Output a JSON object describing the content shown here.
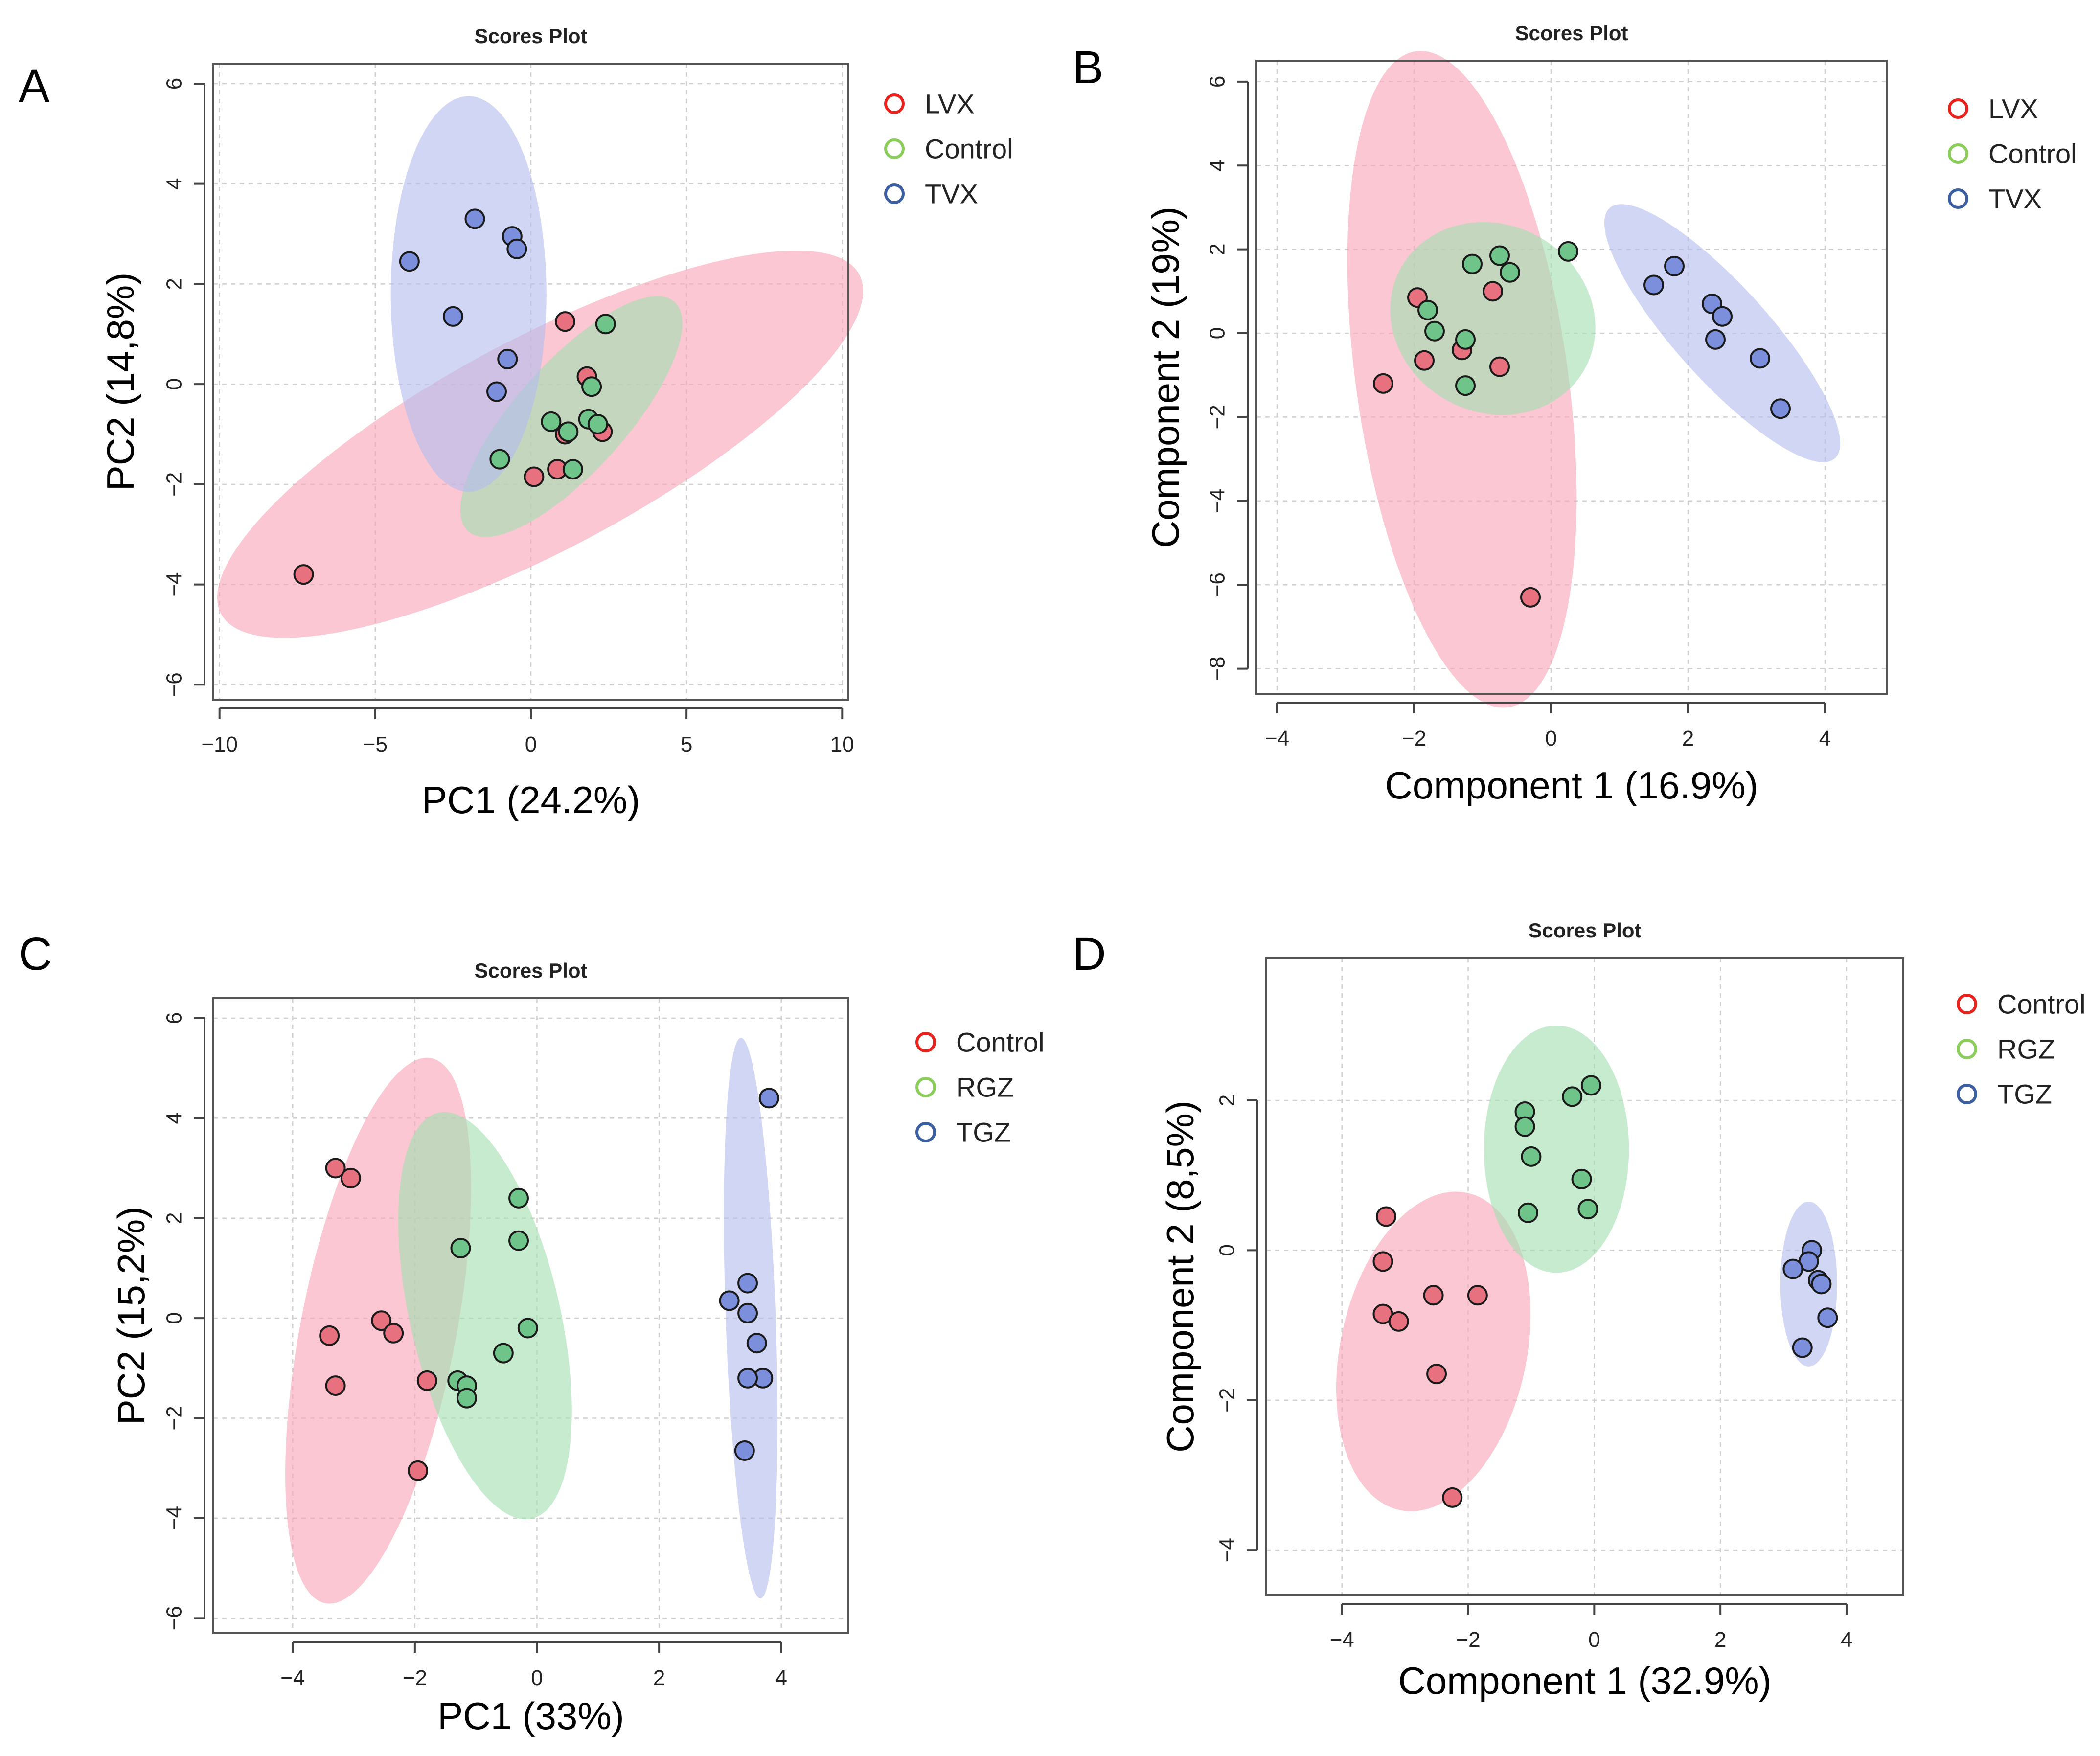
{
  "colors": {
    "red_point": "#e8717f",
    "green_point": "#6fc48a",
    "blue_point": "#7b8fdc",
    "red_ellipse": "#f7a5b6",
    "green_ellipse": "#a5dfb1",
    "blue_ellipse": "#b3bdee",
    "legend_red": "#e8221c",
    "legend_green": "#8acd5a",
    "legend_blue": "#3b5fa0"
  },
  "chart_data": [
    {
      "panel": "A",
      "type": "scatter",
      "title": "Scores Plot",
      "xlabel": "PC1 (24.2%)",
      "ylabel": "PC2 (14,8%)",
      "xlim": [
        -10.2,
        10.2
      ],
      "ylim": [
        -6.3,
        6.4
      ],
      "xticks": [
        -10,
        -5,
        0,
        5,
        10
      ],
      "xtick_labels": [
        "−10",
        "−5",
        "0",
        "5",
        "10"
      ],
      "yticks": [
        -6,
        -4,
        -2,
        0,
        2,
        4,
        6
      ],
      "ytick_labels": [
        "−6",
        "−4",
        "−2",
        "0",
        "2",
        "4",
        "6"
      ],
      "grid": true,
      "legend_position": "right",
      "series": [
        {
          "name": "LVX",
          "color_key": "red",
          "points": [
            [
              1.1,
              1.25
            ],
            [
              1.8,
              0.15
            ],
            [
              1.1,
              -1.0
            ],
            [
              2.3,
              -0.95
            ],
            [
              0.85,
              -1.7
            ],
            [
              0.1,
              -1.85
            ],
            [
              -7.3,
              -3.8
            ]
          ],
          "ellipse": {
            "center": [
              0.3,
              -1.2
            ],
            "rx": 8.9,
            "ry": 2.6,
            "angle_deg": 28
          }
        },
        {
          "name": "Control",
          "color_key": "green",
          "points": [
            [
              2.4,
              1.2
            ],
            [
              1.95,
              -0.05
            ],
            [
              0.65,
              -0.75
            ],
            [
              1.85,
              -0.7
            ],
            [
              2.15,
              -0.8
            ],
            [
              1.2,
              -0.95
            ],
            [
              -1.0,
              -1.5
            ],
            [
              1.35,
              -1.7
            ]
          ],
          "ellipse": {
            "center": [
              1.3,
              -0.65
            ],
            "rx": 3.8,
            "ry": 1.35,
            "angle_deg": 48
          }
        },
        {
          "name": "TVX",
          "color_key": "blue",
          "points": [
            [
              -1.8,
              3.3
            ],
            [
              -0.6,
              2.95
            ],
            [
              -0.45,
              2.7
            ],
            [
              -3.9,
              2.45
            ],
            [
              -2.5,
              1.35
            ],
            [
              -0.75,
              0.5
            ],
            [
              -1.1,
              -0.15
            ]
          ],
          "ellipse": {
            "center": [
              -2.0,
              1.8
            ],
            "rx": 2.5,
            "ry": 3.95,
            "angle_deg": 0
          }
        }
      ]
    },
    {
      "panel": "B",
      "type": "scatter",
      "title": "Scores Plot",
      "xlabel": "Component 1 (16.9%)",
      "ylabel": "Component 2 (19%)",
      "xlim": [
        -4.3,
        4.9
      ],
      "ylim": [
        -8.6,
        6.5
      ],
      "xticks": [
        -4,
        -2,
        0,
        2,
        4
      ],
      "xtick_labels": [
        "−4",
        "−2",
        "0",
        "2",
        "4"
      ],
      "yticks": [
        -8,
        -6,
        -4,
        -2,
        0,
        2,
        4,
        6
      ],
      "ytick_labels": [
        "−8",
        "−6",
        "−4",
        "−2",
        "0",
        "2",
        "4",
        "6"
      ],
      "grid": true,
      "legend_position": "right",
      "series": [
        {
          "name": "LVX",
          "color_key": "red",
          "points": [
            [
              -1.95,
              0.85
            ],
            [
              -0.85,
              1.0
            ],
            [
              -1.85,
              -0.65
            ],
            [
              -1.3,
              -0.4
            ],
            [
              -0.75,
              -0.8
            ],
            [
              -2.45,
              -1.2
            ],
            [
              -0.3,
              -6.3
            ]
          ],
          "ellipse": {
            "center": [
              -1.3,
              -1.1
            ],
            "rx": 1.92,
            "ry": 6.0,
            "angle_deg": 8
          }
        },
        {
          "name": "Control",
          "color_key": "green",
          "points": [
            [
              -0.75,
              1.85
            ],
            [
              -1.15,
              1.65
            ],
            [
              -0.6,
              1.45
            ],
            [
              0.25,
              1.95
            ],
            [
              -1.8,
              0.55
            ],
            [
              -1.7,
              0.05
            ],
            [
              -1.25,
              -0.15
            ],
            [
              -1.25,
              -1.25
            ]
          ],
          "ellipse": {
            "center": [
              -0.85,
              0.35
            ],
            "rx": 1.9,
            "ry": 1.7,
            "angle_deg": -28
          }
        },
        {
          "name": "TVX",
          "color_key": "blue",
          "points": [
            [
              1.5,
              1.15
            ],
            [
              1.8,
              1.6
            ],
            [
              2.35,
              0.7
            ],
            [
              2.5,
              0.4
            ],
            [
              2.4,
              -0.15
            ],
            [
              3.05,
              -0.6
            ],
            [
              3.35,
              -1.8
            ]
          ],
          "ellipse": {
            "center": [
              2.5,
              0.0
            ],
            "rx": 3.05,
            "ry": 0.85,
            "angle_deg": -48
          }
        }
      ]
    },
    {
      "panel": "C",
      "type": "scatter",
      "title": "Scores Plot",
      "xlabel": "PC1 (33%)",
      "ylabel": "PC2 (15,2%)",
      "xlim": [
        -5.3,
        5.1
      ],
      "ylim": [
        -6.3,
        6.4
      ],
      "xticks": [
        -4,
        -2,
        0,
        2,
        4
      ],
      "xtick_labels": [
        "−4",
        "−2",
        "0",
        "2",
        "4"
      ],
      "yticks": [
        -6,
        -4,
        -2,
        0,
        2,
        4,
        6
      ],
      "ytick_labels": [
        "−6",
        "−4",
        "−2",
        "0",
        "2",
        "4",
        "6"
      ],
      "grid": true,
      "legend_position": "right",
      "series": [
        {
          "name": "Control",
          "color_key": "red",
          "points": [
            [
              -3.3,
              3.0
            ],
            [
              -3.05,
              2.8
            ],
            [
              -2.55,
              -0.05
            ],
            [
              -2.35,
              -0.3
            ],
            [
              -3.4,
              -0.35
            ],
            [
              -3.3,
              -1.35
            ],
            [
              -1.8,
              -1.25
            ],
            [
              -1.95,
              -3.05
            ]
          ],
          "ellipse": {
            "center": [
              -2.6,
              -0.25
            ],
            "rx": 1.4,
            "ry": 5.0,
            "angle_deg": -11
          }
        },
        {
          "name": "RGZ",
          "color_key": "green",
          "points": [
            [
              -0.3,
              2.4
            ],
            [
              -1.25,
              1.4
            ],
            [
              -0.3,
              1.55
            ],
            [
              -0.15,
              -0.2
            ],
            [
              -0.55,
              -0.7
            ],
            [
              -1.3,
              -1.25
            ],
            [
              -1.15,
              -1.35
            ],
            [
              -1.15,
              -1.6
            ]
          ],
          "ellipse": {
            "center": [
              -0.85,
              0.05
            ],
            "rx": 1.35,
            "ry": 3.75,
            "angle_deg": 13
          }
        },
        {
          "name": "TGZ",
          "color_key": "blue",
          "points": [
            [
              3.8,
              4.4
            ],
            [
              3.45,
              0.7
            ],
            [
              3.15,
              0.35
            ],
            [
              3.45,
              0.1
            ],
            [
              3.6,
              -0.5
            ],
            [
              3.7,
              -1.2
            ],
            [
              3.45,
              -1.2
            ],
            [
              3.4,
              -2.65
            ]
          ],
          "ellipse": {
            "center": [
              3.5,
              0.0
            ],
            "rx": 0.45,
            "ry": 5.05,
            "angle_deg": 2
          }
        }
      ]
    },
    {
      "panel": "D",
      "type": "scatter",
      "title": "Scores Plot",
      "xlabel": "Component 1 (32.9%)",
      "ylabel": "Component 2 (8,5%)",
      "xlim": [
        -5.2,
        4.9
      ],
      "ylim": [
        -4.6,
        3.9
      ],
      "xticks": [
        -4,
        -2,
        0,
        2,
        4
      ],
      "xtick_labels": [
        "−4",
        "−2",
        "0",
        "2",
        "4"
      ],
      "yticks": [
        -4,
        -2,
        0,
        2
      ],
      "ytick_labels": [
        "−4",
        "−2",
        "0",
        "2"
      ],
      "grid": true,
      "legend_position": "right",
      "series": [
        {
          "name": "Control",
          "color_key": "red",
          "points": [
            [
              -3.3,
              0.45
            ],
            [
              -3.35,
              -0.15
            ],
            [
              -3.35,
              -0.85
            ],
            [
              -3.1,
              -0.95
            ],
            [
              -2.55,
              -0.6
            ],
            [
              -1.85,
              -0.6
            ],
            [
              -2.5,
              -1.65
            ],
            [
              -2.25,
              -3.3
            ]
          ],
          "ellipse": {
            "center": [
              -2.55,
              -1.35
            ],
            "rx": 1.35,
            "ry": 2.35,
            "angle_deg": -12
          }
        },
        {
          "name": "RGZ",
          "color_key": "green",
          "points": [
            [
              -0.05,
              2.2
            ],
            [
              -0.35,
              2.05
            ],
            [
              -1.1,
              1.85
            ],
            [
              -1.1,
              1.65
            ],
            [
              -1.0,
              1.25
            ],
            [
              -0.2,
              0.95
            ],
            [
              -1.05,
              0.5
            ],
            [
              -0.1,
              0.55
            ]
          ],
          "ellipse": {
            "center": [
              -0.6,
              1.35
            ],
            "rx": 1.15,
            "ry": 1.65,
            "angle_deg": 0
          }
        },
        {
          "name": "TGZ",
          "color_key": "blue",
          "points": [
            [
              3.45,
              0.0
            ],
            [
              3.4,
              -0.15
            ],
            [
              3.15,
              -0.25
            ],
            [
              3.55,
              -0.4
            ],
            [
              3.6,
              -0.45
            ],
            [
              3.7,
              -0.9
            ],
            [
              3.3,
              -1.3
            ]
          ],
          "ellipse": {
            "center": [
              3.4,
              -0.45
            ],
            "rx": 0.45,
            "ry": 1.1,
            "angle_deg": 0
          }
        }
      ]
    }
  ]
}
